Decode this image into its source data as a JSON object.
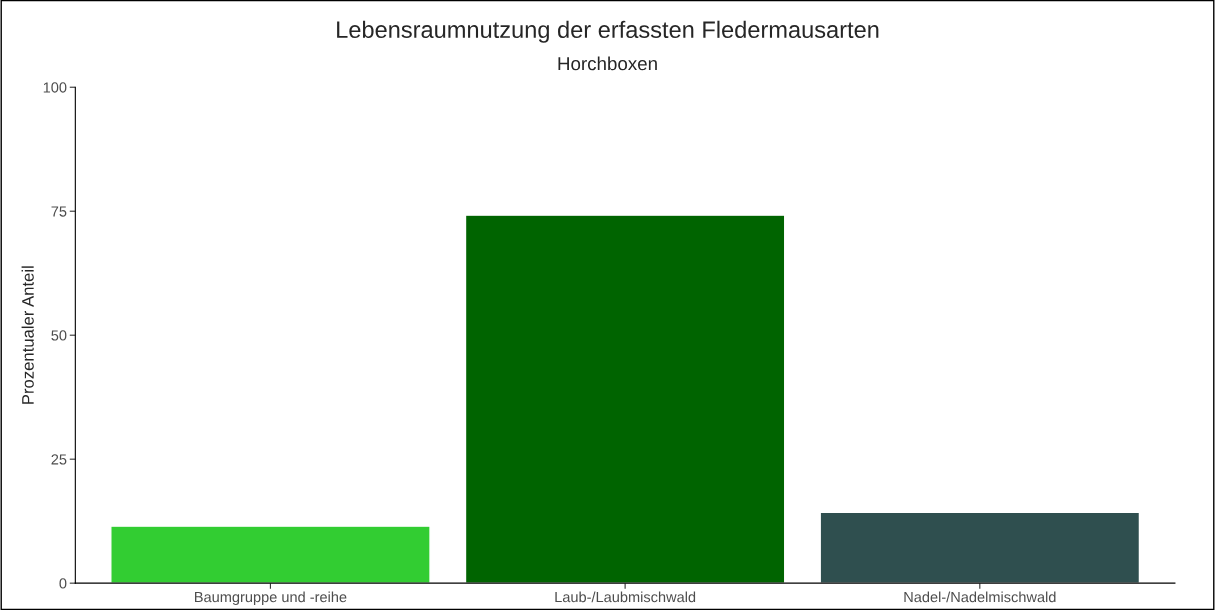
{
  "chart_data": {
    "type": "bar",
    "title": "Lebensraumnutzung der erfassten Fledermausarten",
    "subtitle": "Horchboxen",
    "ylabel": "Prozentualer Anteil",
    "categories": [
      "Baumgruppe und -reihe",
      "Laub-/Laubmischwald",
      "Nadel-/Nadelmischwald"
    ],
    "values": [
      11.5,
      74.2,
      14.3
    ],
    "colors": [
      "#32cd32",
      "#006400",
      "#2f4f4f"
    ],
    "ylim": [
      0,
      100
    ],
    "yticks": [
      0,
      25,
      50,
      75,
      100
    ],
    "grid": false,
    "legend": false
  }
}
